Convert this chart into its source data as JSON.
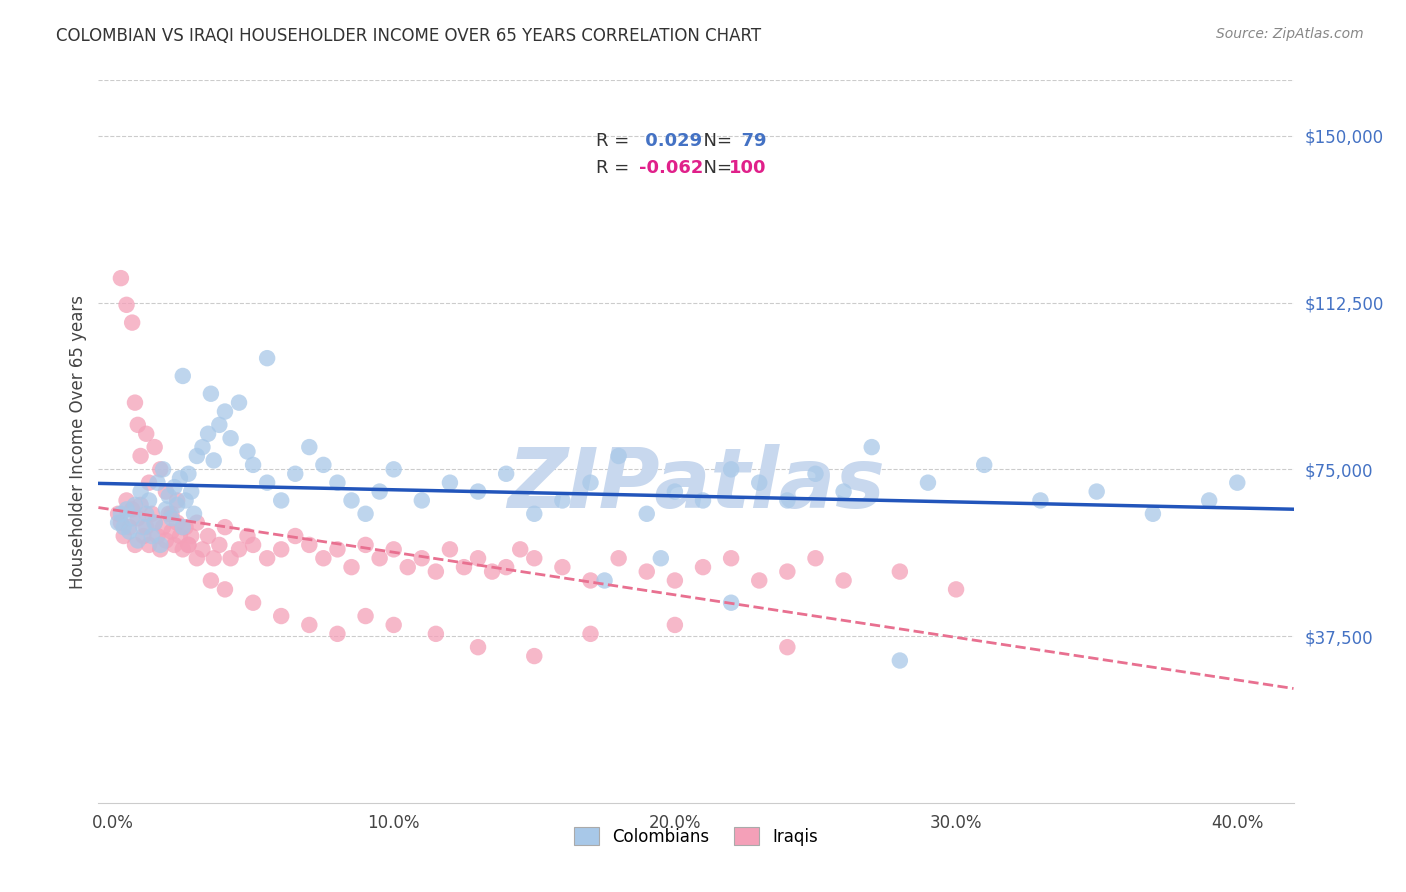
{
  "title": "COLOMBIAN VS IRAQI HOUSEHOLDER INCOME OVER 65 YEARS CORRELATION CHART",
  "source": "Source: ZipAtlas.com",
  "xlabel_ticks": [
    "0.0%",
    "10.0%",
    "20.0%",
    "30.0%",
    "40.0%"
  ],
  "xlabel_tick_vals": [
    0.0,
    0.1,
    0.2,
    0.3,
    0.4
  ],
  "ylabel": "Householder Income Over 65 years",
  "ytick_labels": [
    "$37,500",
    "$75,000",
    "$112,500",
    "$150,000"
  ],
  "ytick_vals": [
    37500,
    75000,
    112500,
    150000
  ],
  "ylim": [
    0,
    162500
  ],
  "xlim": [
    -0.005,
    0.42
  ],
  "colombian_R": 0.029,
  "colombian_N": 79,
  "iraqi_R": -0.062,
  "iraqi_N": 100,
  "colombian_color": "#a8c8e8",
  "iraqi_color": "#f4a0b8",
  "colombian_line_color": "#2255bb",
  "iraqi_line_color": "#e87090",
  "watermark_color": "#c8d8ee",
  "colombian_x": [
    0.002,
    0.003,
    0.004,
    0.005,
    0.006,
    0.007,
    0.008,
    0.009,
    0.01,
    0.011,
    0.012,
    0.013,
    0.014,
    0.015,
    0.016,
    0.017,
    0.018,
    0.019,
    0.02,
    0.021,
    0.022,
    0.023,
    0.024,
    0.025,
    0.026,
    0.027,
    0.028,
    0.029,
    0.03,
    0.032,
    0.034,
    0.036,
    0.038,
    0.04,
    0.042,
    0.045,
    0.048,
    0.05,
    0.055,
    0.06,
    0.065,
    0.07,
    0.075,
    0.08,
    0.085,
    0.09,
    0.095,
    0.1,
    0.11,
    0.12,
    0.13,
    0.14,
    0.15,
    0.16,
    0.17,
    0.18,
    0.19,
    0.2,
    0.21,
    0.22,
    0.23,
    0.24,
    0.25,
    0.26,
    0.27,
    0.29,
    0.31,
    0.33,
    0.35,
    0.37,
    0.39,
    0.4,
    0.025,
    0.035,
    0.055,
    0.175,
    0.195,
    0.22,
    0.28
  ],
  "colombian_y": [
    63000,
    65000,
    62000,
    66000,
    61000,
    64000,
    67000,
    59000,
    70000,
    62000,
    65000,
    68000,
    60000,
    63000,
    72000,
    58000,
    75000,
    66000,
    69000,
    64000,
    71000,
    67000,
    73000,
    62000,
    68000,
    74000,
    70000,
    65000,
    78000,
    80000,
    83000,
    77000,
    85000,
    88000,
    82000,
    90000,
    79000,
    76000,
    72000,
    68000,
    74000,
    80000,
    76000,
    72000,
    68000,
    65000,
    70000,
    75000,
    68000,
    72000,
    70000,
    74000,
    65000,
    68000,
    72000,
    78000,
    65000,
    70000,
    68000,
    75000,
    72000,
    68000,
    74000,
    70000,
    80000,
    72000,
    76000,
    68000,
    70000,
    65000,
    68000,
    72000,
    96000,
    92000,
    100000,
    50000,
    55000,
    45000,
    32000
  ],
  "iraqi_x": [
    0.002,
    0.003,
    0.004,
    0.005,
    0.006,
    0.007,
    0.008,
    0.009,
    0.01,
    0.011,
    0.012,
    0.013,
    0.014,
    0.015,
    0.016,
    0.017,
    0.018,
    0.019,
    0.02,
    0.021,
    0.022,
    0.023,
    0.024,
    0.025,
    0.026,
    0.027,
    0.028,
    0.03,
    0.032,
    0.034,
    0.036,
    0.038,
    0.04,
    0.042,
    0.045,
    0.048,
    0.05,
    0.055,
    0.06,
    0.065,
    0.07,
    0.075,
    0.08,
    0.085,
    0.09,
    0.095,
    0.1,
    0.105,
    0.11,
    0.115,
    0.12,
    0.125,
    0.13,
    0.135,
    0.14,
    0.145,
    0.15,
    0.16,
    0.17,
    0.18,
    0.19,
    0.2,
    0.21,
    0.22,
    0.23,
    0.24,
    0.25,
    0.26,
    0.28,
    0.3,
    0.003,
    0.005,
    0.007,
    0.008,
    0.009,
    0.01,
    0.012,
    0.013,
    0.015,
    0.017,
    0.019,
    0.021,
    0.023,
    0.025,
    0.027,
    0.03,
    0.035,
    0.04,
    0.05,
    0.06,
    0.07,
    0.08,
    0.09,
    0.1,
    0.115,
    0.13,
    0.15,
    0.17,
    0.2,
    0.24
  ],
  "iraqi_y": [
    65000,
    63000,
    60000,
    68000,
    62000,
    66000,
    58000,
    64000,
    67000,
    60000,
    62000,
    58000,
    65000,
    63000,
    60000,
    57000,
    62000,
    59000,
    65000,
    61000,
    58000,
    63000,
    60000,
    57000,
    62000,
    58000,
    60000,
    63000,
    57000,
    60000,
    55000,
    58000,
    62000,
    55000,
    57000,
    60000,
    58000,
    55000,
    57000,
    60000,
    58000,
    55000,
    57000,
    53000,
    58000,
    55000,
    57000,
    53000,
    55000,
    52000,
    57000,
    53000,
    55000,
    52000,
    53000,
    57000,
    55000,
    53000,
    50000,
    55000,
    52000,
    50000,
    53000,
    55000,
    50000,
    52000,
    55000,
    50000,
    52000,
    48000,
    118000,
    112000,
    108000,
    90000,
    85000,
    78000,
    83000,
    72000,
    80000,
    75000,
    70000,
    65000,
    68000,
    62000,
    58000,
    55000,
    50000,
    48000,
    45000,
    42000,
    40000,
    38000,
    42000,
    40000,
    38000,
    35000,
    33000,
    38000,
    40000,
    35000
  ]
}
